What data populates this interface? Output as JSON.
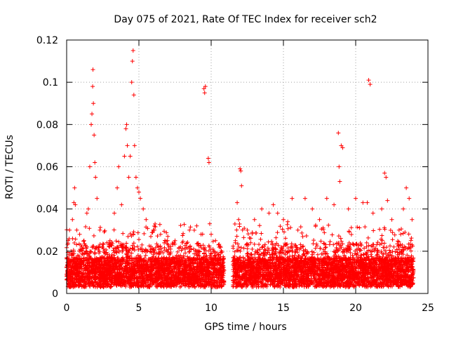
{
  "chart_data": {
    "type": "scatter",
    "title": "Day 075 of 2021, Rate Of TEC Index for receiver sch2",
    "xlabel": "GPS time / hours",
    "ylabel": "ROTI / TECUs",
    "xlim": [
      0,
      25
    ],
    "ylim": [
      0,
      0.12
    ],
    "xticks": [
      "0",
      "5",
      "10",
      "15",
      "20",
      "25"
    ],
    "yticks": [
      "0",
      "0.02",
      "0.04",
      "0.06",
      "0.08",
      "0.1",
      "0.12"
    ],
    "grid": true,
    "marker": "+",
    "color": "#ff0000",
    "data_gap_hours": [
      10.9,
      11.5
    ],
    "series": [
      {
        "values_xy": [
          [
            0.1,
            0.025
          ],
          [
            0.2,
            0.03
          ],
          [
            0.3,
            0.02
          ],
          [
            0.4,
            0.035
          ],
          [
            0.5,
            0.043
          ],
          [
            0.55,
            0.05
          ],
          [
            0.6,
            0.042
          ],
          [
            0.7,
            0.03
          ],
          [
            0.9,
            0.028
          ],
          [
            1.2,
            0.025
          ],
          [
            1.4,
            0.038
          ],
          [
            1.5,
            0.04
          ],
          [
            1.6,
            0.06
          ],
          [
            1.7,
            0.08
          ],
          [
            1.75,
            0.085
          ],
          [
            1.8,
            0.098
          ],
          [
            1.82,
            0.106
          ],
          [
            1.85,
            0.09
          ],
          [
            1.9,
            0.075
          ],
          [
            1.95,
            0.062
          ],
          [
            2.0,
            0.055
          ],
          [
            2.1,
            0.045
          ],
          [
            2.3,
            0.03
          ],
          [
            3.0,
            0.025
          ],
          [
            3.3,
            0.038
          ],
          [
            3.5,
            0.05
          ],
          [
            3.6,
            0.06
          ],
          [
            3.8,
            0.042
          ],
          [
            4.0,
            0.065
          ],
          [
            4.1,
            0.078
          ],
          [
            4.15,
            0.08
          ],
          [
            4.2,
            0.07
          ],
          [
            4.3,
            0.055
          ],
          [
            4.4,
            0.065
          ],
          [
            4.5,
            0.1
          ],
          [
            4.55,
            0.11
          ],
          [
            4.6,
            0.115
          ],
          [
            4.65,
            0.094
          ],
          [
            4.7,
            0.07
          ],
          [
            4.8,
            0.055
          ],
          [
            4.9,
            0.05
          ],
          [
            5.0,
            0.048
          ],
          [
            5.1,
            0.045
          ],
          [
            5.3,
            0.04
          ],
          [
            5.5,
            0.035
          ],
          [
            6.0,
            0.03
          ],
          [
            6.5,
            0.028
          ],
          [
            7.0,
            0.027
          ],
          [
            7.5,
            0.025
          ],
          [
            8.0,
            0.024
          ],
          [
            8.5,
            0.03
          ],
          [
            9.0,
            0.032
          ],
          [
            9.3,
            0.028
          ],
          [
            9.5,
            0.097
          ],
          [
            9.55,
            0.095
          ],
          [
            9.6,
            0.098
          ],
          [
            9.8,
            0.064
          ],
          [
            9.85,
            0.062
          ],
          [
            9.9,
            0.033
          ],
          [
            10.0,
            0.028
          ],
          [
            10.3,
            0.025
          ],
          [
            11.8,
            0.043
          ],
          [
            11.9,
            0.035
          ],
          [
            12.0,
            0.059
          ],
          [
            12.05,
            0.058
          ],
          [
            12.1,
            0.051
          ],
          [
            12.5,
            0.03
          ],
          [
            13.0,
            0.035
          ],
          [
            13.5,
            0.04
          ],
          [
            14.0,
            0.038
          ],
          [
            14.3,
            0.042
          ],
          [
            14.6,
            0.038
          ],
          [
            15.0,
            0.035
          ],
          [
            15.3,
            0.034
          ],
          [
            15.6,
            0.045
          ],
          [
            16.0,
            0.03
          ],
          [
            16.5,
            0.045
          ],
          [
            17.0,
            0.04
          ],
          [
            17.5,
            0.035
          ],
          [
            18.0,
            0.045
          ],
          [
            18.5,
            0.042
          ],
          [
            18.8,
            0.076
          ],
          [
            18.85,
            0.06
          ],
          [
            18.9,
            0.053
          ],
          [
            19.0,
            0.07
          ],
          [
            19.1,
            0.069
          ],
          [
            19.5,
            0.04
          ],
          [
            20.0,
            0.045
          ],
          [
            20.5,
            0.043
          ],
          [
            20.8,
            0.043
          ],
          [
            20.9,
            0.101
          ],
          [
            21.0,
            0.099
          ],
          [
            21.2,
            0.038
          ],
          [
            21.8,
            0.04
          ],
          [
            22.0,
            0.057
          ],
          [
            22.1,
            0.055
          ],
          [
            22.2,
            0.044
          ],
          [
            22.5,
            0.035
          ],
          [
            23.0,
            0.03
          ],
          [
            23.3,
            0.04
          ],
          [
            23.5,
            0.05
          ],
          [
            23.7,
            0.045
          ],
          [
            23.9,
            0.035
          ]
        ]
      }
    ]
  }
}
